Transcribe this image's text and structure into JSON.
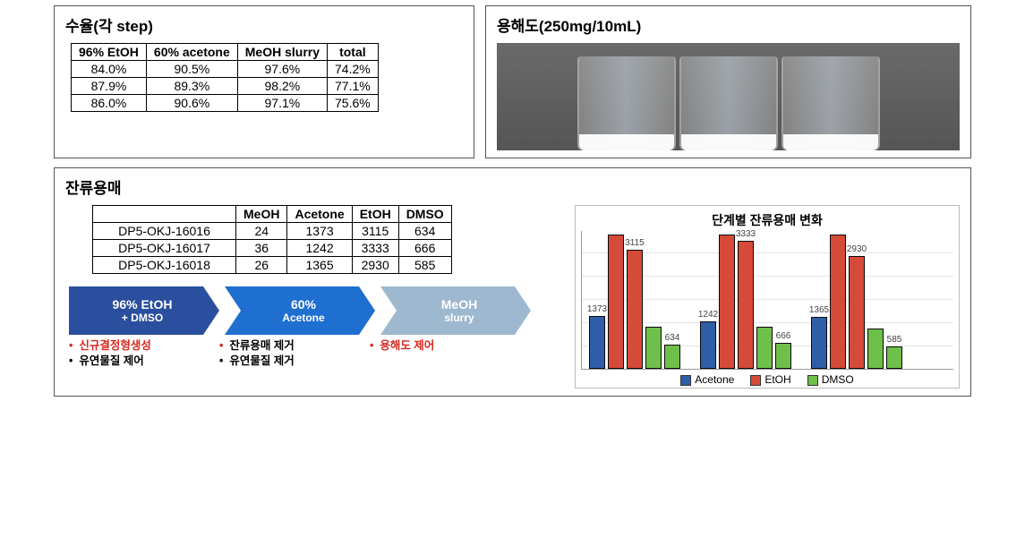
{
  "panels": {
    "yield_title": "수율(각 step)",
    "solubility_title": "용해도(250mg/10mL)",
    "residual_title": "잔류용매"
  },
  "yield_table": {
    "columns": [
      "96% EtOH",
      "60% acetone",
      "MeOH slurry",
      "total"
    ],
    "rows": [
      [
        "84.0%",
        "90.5%",
        "97.6%",
        "74.2%"
      ],
      [
        "87.9%",
        "89.3%",
        "98.2%",
        "77.1%"
      ],
      [
        "86.0%",
        "90.6%",
        "97.1%",
        "75.6%"
      ]
    ]
  },
  "residual_table": {
    "columns": [
      "",
      "MeOH",
      "Acetone",
      "EtOH",
      "DMSO"
    ],
    "rows": [
      [
        "DP5-OKJ-16016",
        "24",
        "1373",
        "3115",
        "634"
      ],
      [
        "DP5-OKJ-16017",
        "36",
        "1242",
        "3333",
        "666"
      ],
      [
        "DP5-OKJ-16018",
        "26",
        "1365",
        "2930",
        "585"
      ]
    ]
  },
  "process_flow": {
    "steps": [
      {
        "line1": "96% EtOH",
        "line2": "+ DMSO",
        "bg": "#2a4f9e"
      },
      {
        "line1": "60%",
        "line2": "Acetone",
        "bg": "#1f6fd0"
      },
      {
        "line1": "MeOH",
        "line2": "slurry",
        "bg": "#9eb8d0"
      }
    ],
    "annotations": [
      {
        "a_text": "신규결정형생성",
        "a_red": true,
        "b_text": "유연물질 제어"
      },
      {
        "a_text": "잔류용매 제거",
        "a_red": false,
        "b_text": "유연물질 제거"
      },
      {
        "a_text": "용해도 제어",
        "a_red": true,
        "b_text": ""
      }
    ]
  },
  "chart": {
    "title": "단계별 잔류용매 변화",
    "ymax": 3500,
    "colors": {
      "acetone": "#2e5ea8",
      "etoh": "#d64a3a",
      "dmso": "#6fbf4b"
    },
    "legend": [
      "Acetone",
      "EtOH",
      "DMSO"
    ],
    "groups": [
      {
        "acetone": 1373,
        "etoh_high": 3500,
        "etoh": 3115,
        "dmso_high": 1100,
        "dmso": 634,
        "acetone_label": "1373",
        "etoh_label": "3115",
        "dmso_label": "634"
      },
      {
        "acetone": 1242,
        "etoh_high": 3500,
        "etoh": 3333,
        "dmso_high": 1100,
        "dmso": 666,
        "acetone_label": "1242",
        "etoh_label": "3333",
        "dmso_label": "666"
      },
      {
        "acetone": 1365,
        "etoh_high": 3500,
        "etoh": 2930,
        "dmso_high": 1050,
        "dmso": 585,
        "acetone_label": "1365",
        "etoh_label": "2930",
        "dmso_label": "585"
      }
    ]
  }
}
